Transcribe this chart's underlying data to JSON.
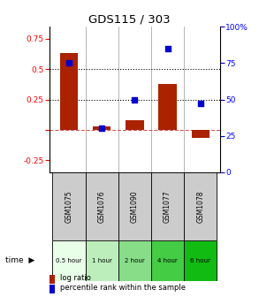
{
  "title": "GDS115 / 303",
  "categories": [
    "GSM1075",
    "GSM1076",
    "GSM1090",
    "GSM1077",
    "GSM1078"
  ],
  "time_labels": [
    "0.5 hour",
    "1 hour",
    "2 hour",
    "4 hour",
    "6 hour"
  ],
  "time_colors": [
    "#e8ffe8",
    "#bbeebb",
    "#88dd88",
    "#44cc44",
    "#11bb11"
  ],
  "log_ratios": [
    0.63,
    0.03,
    0.08,
    0.38,
    -0.07
  ],
  "percentile_ranks": [
    75,
    30,
    50,
    85,
    47
  ],
  "bar_color": "#aa2200",
  "scatter_color": "#0000cc",
  "left_ylim": [
    -0.35,
    0.85
  ],
  "right_ylim": [
    0,
    100
  ],
  "left_yticks": [
    -0.25,
    0,
    0.25,
    0.5,
    0.75
  ],
  "right_yticks": [
    0,
    25,
    50,
    75,
    100
  ],
  "hline_y": [
    0.25,
    0.5
  ],
  "legend_items": [
    "log ratio",
    "percentile rank within the sample"
  ],
  "legend_colors": [
    "#aa2200",
    "#0000cc"
  ],
  "bar_width": 0.55,
  "gsm_bg": "#cccccc"
}
